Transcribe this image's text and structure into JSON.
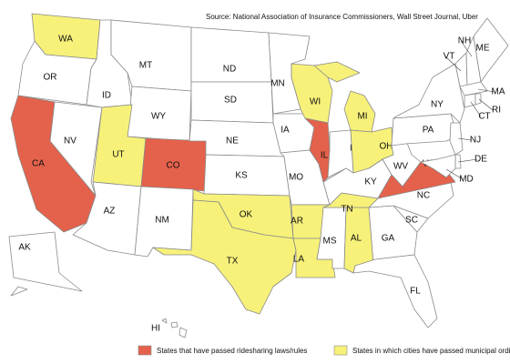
{
  "source": "Source: National Association of Insurance Commissioners, Wall Street Journal, Uber",
  "states": [
    {
      "label": "WA",
      "color": "#f7f17a"
    },
    {
      "label": "OR",
      "color": "#ffffff"
    },
    {
      "label": "CA",
      "color": "#e4614b"
    },
    {
      "label": "NV",
      "color": "#ffffff"
    },
    {
      "label": "ID",
      "color": "#ffffff"
    },
    {
      "label": "MT",
      "color": "#ffffff"
    },
    {
      "label": "WY",
      "color": "#ffffff"
    },
    {
      "label": "UT",
      "color": "#f7f17a"
    },
    {
      "label": "CO",
      "color": "#e4614b"
    },
    {
      "label": "AZ",
      "color": "#ffffff"
    },
    {
      "label": "NM",
      "color": "#ffffff"
    },
    {
      "label": "ND",
      "color": "#ffffff"
    },
    {
      "label": "SD",
      "color": "#ffffff"
    },
    {
      "label": "NE",
      "color": "#ffffff"
    },
    {
      "label": "KS",
      "color": "#ffffff"
    },
    {
      "label": "OK",
      "color": "#f7f17a"
    },
    {
      "label": "TX",
      "color": "#f7f17a"
    },
    {
      "label": "MN",
      "color": "#ffffff"
    },
    {
      "label": "IA",
      "color": "#ffffff"
    },
    {
      "label": "MO",
      "color": "#ffffff"
    },
    {
      "label": "AR",
      "color": "#f7f17a"
    },
    {
      "label": "LA",
      "color": "#f7f17a"
    },
    {
      "label": "MS",
      "color": "#ffffff"
    },
    {
      "label": "AL",
      "color": "#f7f17a"
    },
    {
      "label": "GA",
      "color": "#ffffff"
    },
    {
      "label": "FL",
      "color": "#ffffff"
    },
    {
      "label": "SC",
      "color": "#ffffff"
    },
    {
      "label": "NC",
      "color": "#ffffff"
    },
    {
      "label": "TN",
      "color": "#f7f17a"
    },
    {
      "label": "KY",
      "color": "#ffffff"
    },
    {
      "label": "WI",
      "color": "#f7f17a"
    },
    {
      "label": "IL",
      "color": "#e4614b"
    },
    {
      "label": "IN",
      "color": "#ffffff"
    },
    {
      "label": "MI",
      "color": "#f7f17a"
    },
    {
      "label": "OH",
      "color": "#f7f17a"
    },
    {
      "label": "WV",
      "color": "#ffffff"
    },
    {
      "label": "VA",
      "color": "#e4614b"
    },
    {
      "label": "PA",
      "color": "#ffffff"
    },
    {
      "label": "NY",
      "color": "#ffffff"
    },
    {
      "label": "VT",
      "color": "#ffffff"
    },
    {
      "label": "NH",
      "color": "#ffffff"
    },
    {
      "label": "ME",
      "color": "#ffffff"
    },
    {
      "label": "MA",
      "color": "#ffffff"
    },
    {
      "label": "CT",
      "color": "#ffffff"
    },
    {
      "label": "RI",
      "color": "#ffffff"
    },
    {
      "label": "NJ",
      "color": "#ffffff"
    },
    {
      "label": "DE",
      "color": "#ffffff"
    },
    {
      "label": "MD",
      "color": "#ffffff"
    },
    {
      "label": "AK",
      "color": "#ffffff"
    },
    {
      "label": "HI",
      "color": "#ffffff"
    }
  ],
  "legend": [
    {
      "label": "States that have passed ridesharing laws/rules",
      "color": "#e4614b"
    },
    {
      "label": "States in which cities have passed municipal ordinances",
      "color": "#f7f17a"
    }
  ]
}
